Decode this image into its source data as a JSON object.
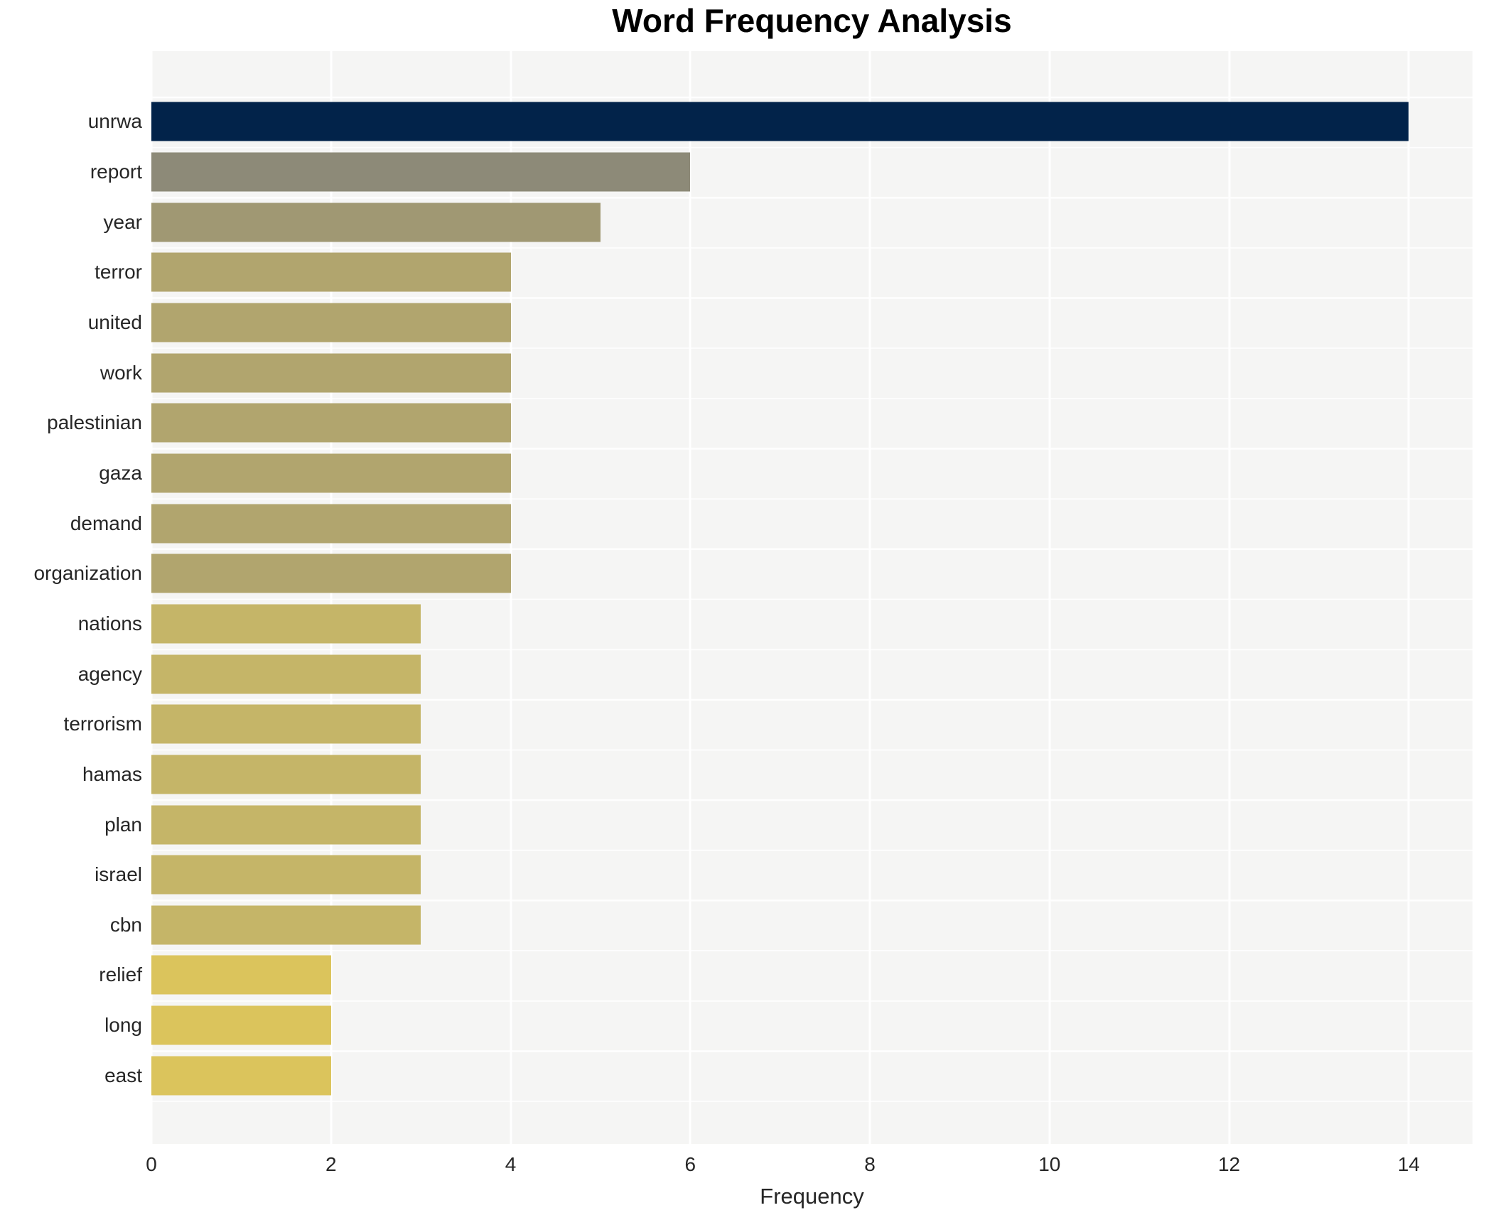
{
  "title": "Word Frequency Analysis",
  "chart_data": {
    "type": "bar",
    "orientation": "horizontal",
    "title": "Word Frequency Analysis",
    "xlabel": "Frequency",
    "ylabel": "",
    "categories": [
      "unrwa",
      "report",
      "year",
      "terror",
      "united",
      "work",
      "palestinian",
      "gaza",
      "demand",
      "organization",
      "nations",
      "agency",
      "terrorism",
      "hamas",
      "plan",
      "israel",
      "cbn",
      "relief",
      "long",
      "east"
    ],
    "values": [
      14,
      6,
      5,
      4,
      4,
      4,
      4,
      4,
      4,
      4,
      3,
      3,
      3,
      3,
      3,
      3,
      3,
      2,
      2,
      2
    ],
    "bar_colors": [
      "#02234a",
      "#8d8a78",
      "#a09873",
      "#b1a56e",
      "#b1a56e",
      "#b1a56e",
      "#b1a56e",
      "#b1a56e",
      "#b1a56e",
      "#b1a56e",
      "#c5b568",
      "#c5b568",
      "#c5b568",
      "#c5b568",
      "#c5b568",
      "#c5b568",
      "#c5b568",
      "#dbc45c",
      "#dbc45c",
      "#dbc45c"
    ],
    "x_ticks": [
      0,
      2,
      4,
      6,
      8,
      10,
      12,
      14
    ],
    "xlim": [
      0,
      14.71
    ],
    "grid": "white vertical major gridlines at even ticks; white horizontal minor gridlines between category rows",
    "legend": "none",
    "panel_bg": "#f5f5f4",
    "grid_color": "#ffffff",
    "text_color": "#262626",
    "title_color": "#000000"
  }
}
